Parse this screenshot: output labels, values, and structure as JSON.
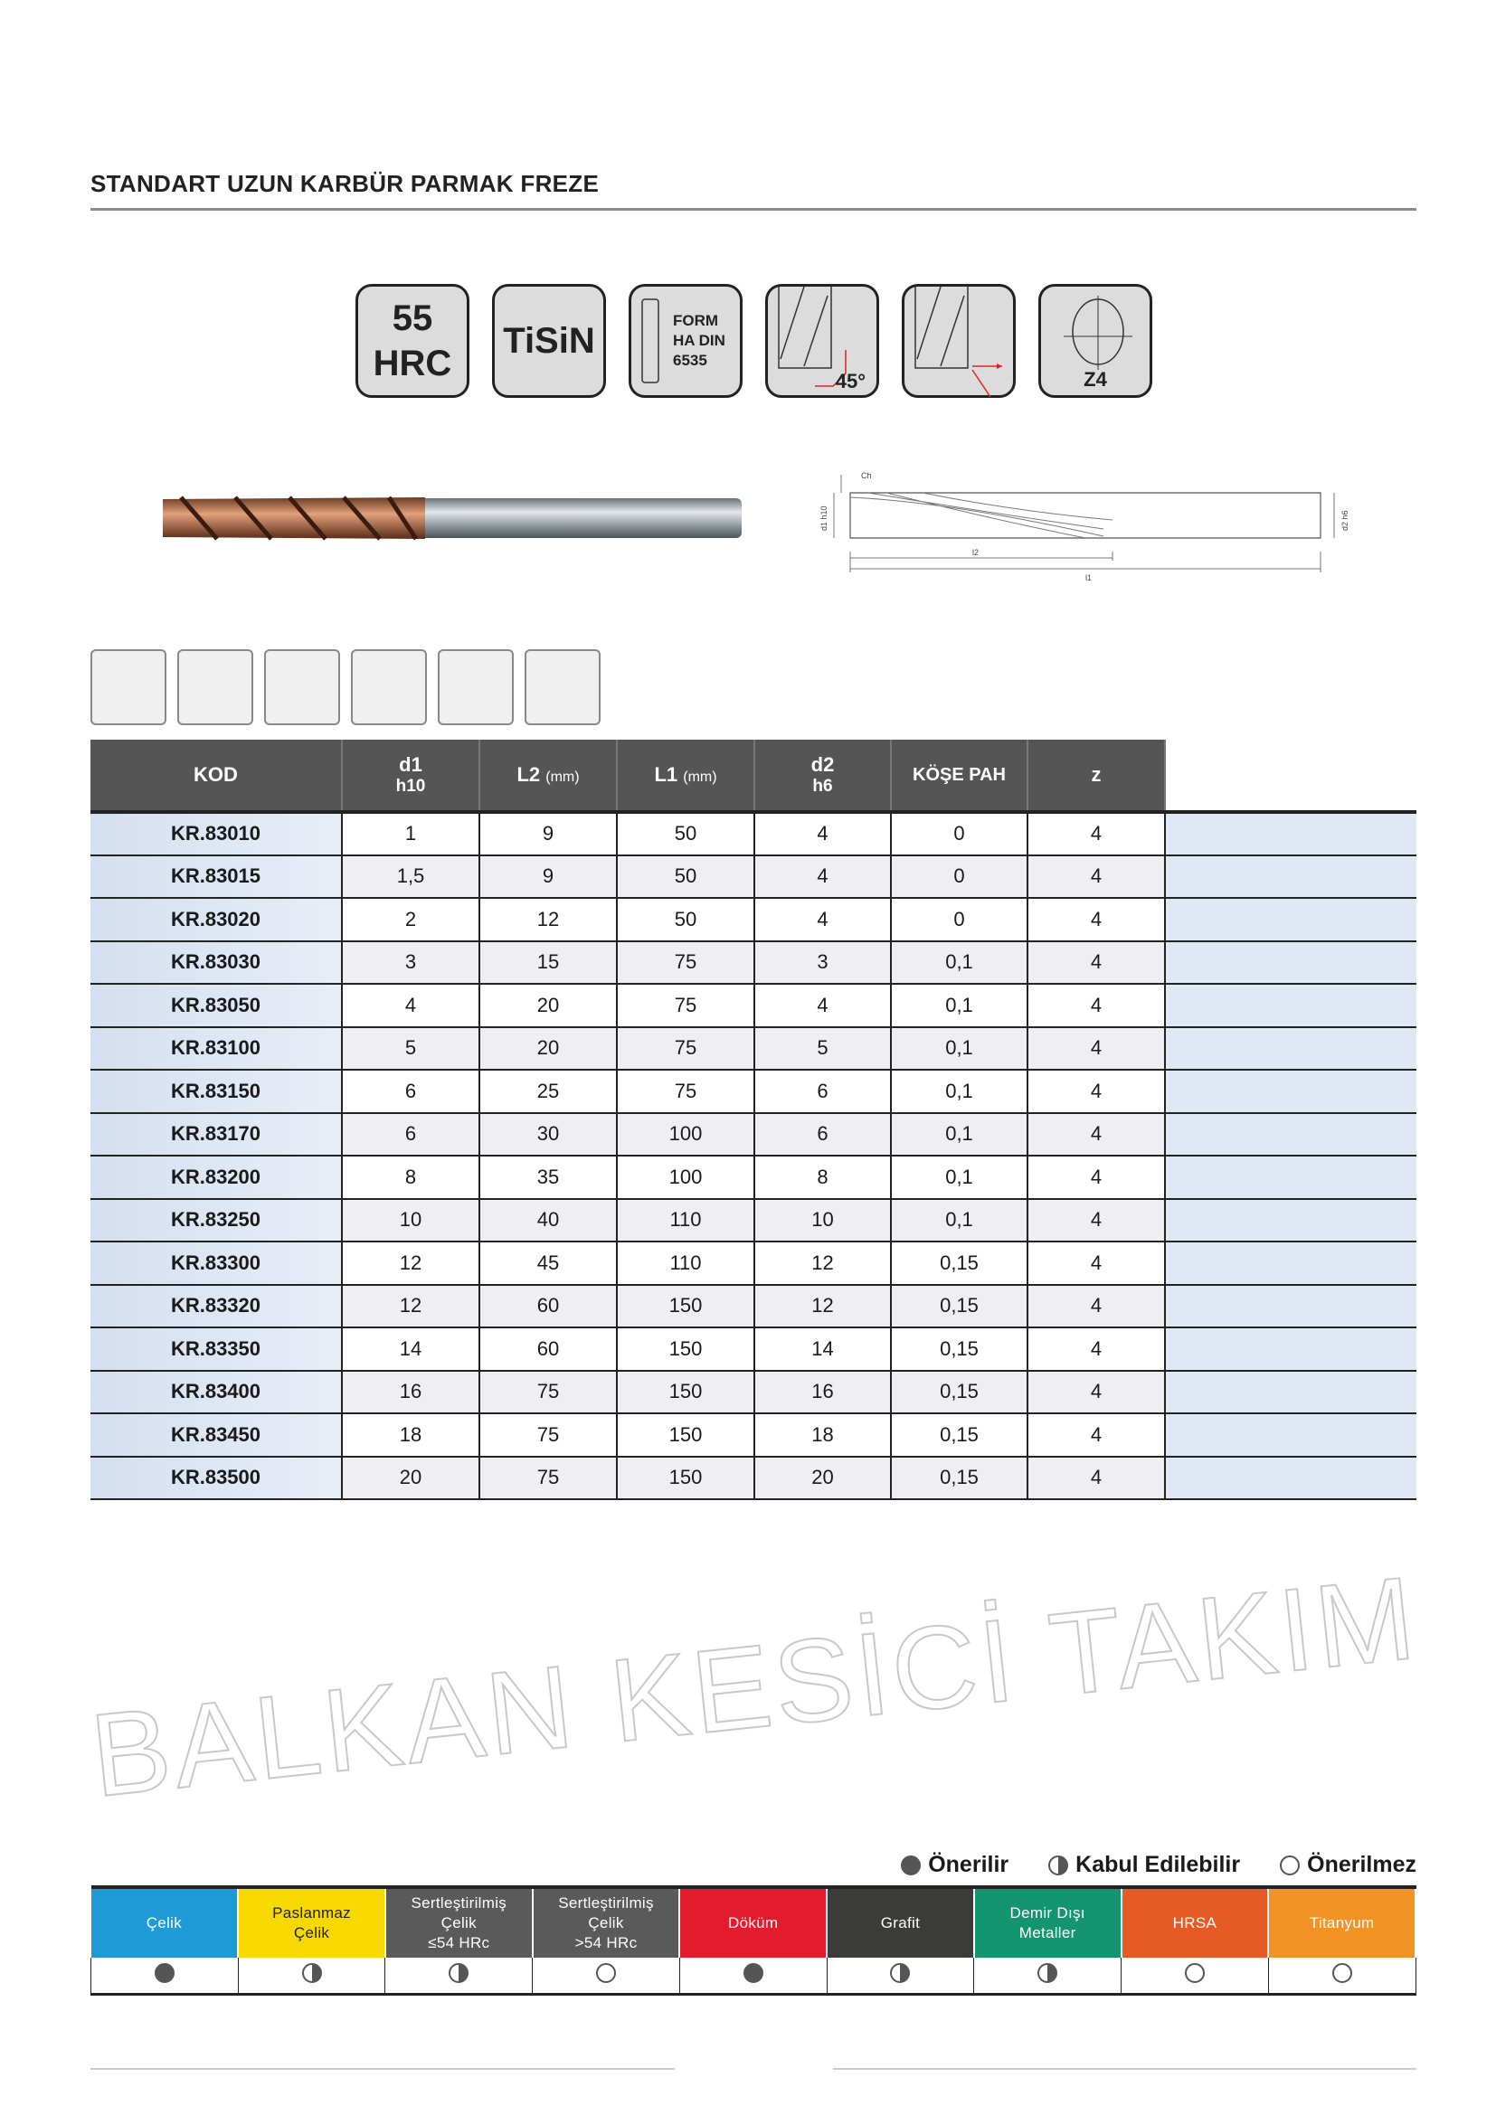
{
  "title": "STANDART UZUN KARBÜR PARMAK FREZE",
  "badges": {
    "hrc_value": "55",
    "hrc_unit": "HRC",
    "coating": "TiSiN",
    "form_l1": "FORM",
    "form_l2": "HA DIN",
    "form_l3": "6535",
    "angle": "45°",
    "flutes": "Z4"
  },
  "drawing_labels": {
    "ch": "Ch",
    "d1": "d1 h10",
    "d2": "d2 h6",
    "l2": "l2",
    "l1": "l1"
  },
  "table": {
    "headers": [
      {
        "main": "KOD",
        "sub": ""
      },
      {
        "main": "d1",
        "sub": "h10"
      },
      {
        "main": "L2",
        "unit": "(mm)"
      },
      {
        "main": "L1",
        "unit": "(mm)"
      },
      {
        "main": "d2",
        "sub": "h6"
      },
      {
        "main": "KÖŞE PAH",
        "sub": ""
      },
      {
        "main": "z",
        "sub": ""
      }
    ],
    "rows": [
      [
        "KR.83010",
        "1",
        "9",
        "50",
        "4",
        "0",
        "4"
      ],
      [
        "KR.83015",
        "1,5",
        "9",
        "50",
        "4",
        "0",
        "4"
      ],
      [
        "KR.83020",
        "2",
        "12",
        "50",
        "4",
        "0",
        "4"
      ],
      [
        "KR.83030",
        "3",
        "15",
        "75",
        "3",
        "0,1",
        "4"
      ],
      [
        "KR.83050",
        "4",
        "20",
        "75",
        "4",
        "0,1",
        "4"
      ],
      [
        "KR.83100",
        "5",
        "20",
        "75",
        "5",
        "0,1",
        "4"
      ],
      [
        "KR.83150",
        "6",
        "25",
        "75",
        "6",
        "0,1",
        "4"
      ],
      [
        "KR.83170",
        "6",
        "30",
        "100",
        "6",
        "0,1",
        "4"
      ],
      [
        "KR.83200",
        "8",
        "35",
        "100",
        "8",
        "0,1",
        "4"
      ],
      [
        "KR.83250",
        "10",
        "40",
        "110",
        "10",
        "0,1",
        "4"
      ],
      [
        "KR.83300",
        "12",
        "45",
        "110",
        "12",
        "0,15",
        "4"
      ],
      [
        "KR.83320",
        "12",
        "60",
        "150",
        "12",
        "0,15",
        "4"
      ],
      [
        "KR.83350",
        "14",
        "60",
        "150",
        "14",
        "0,15",
        "4"
      ],
      [
        "KR.83400",
        "16",
        "75",
        "150",
        "16",
        "0,15",
        "4"
      ],
      [
        "KR.83450",
        "18",
        "75",
        "150",
        "18",
        "0,15",
        "4"
      ],
      [
        "KR.83500",
        "20",
        "75",
        "150",
        "20",
        "0,15",
        "4"
      ]
    ]
  },
  "watermark": "BALKAN KESİCİ TAKIM",
  "legend": {
    "recommended": "Önerilir",
    "acceptable": "Kabul Edilebilir",
    "not_recommended": "Önerilmez"
  },
  "materials": [
    {
      "label": "Çelik",
      "color": "#1e9ad6",
      "text": "#fff",
      "rating": "full"
    },
    {
      "label": "Paslanmaz\nÇelik",
      "color": "#f7d900",
      "text": "#222",
      "rating": "half"
    },
    {
      "label": "Sertleştirilmiş\nÇelik\n≤54 HRc",
      "color": "#5a5a5a",
      "text": "#fff",
      "rating": "half"
    },
    {
      "label": "Sertleştirilmiş\nÇelik\n>54 HRc",
      "color": "#5a5a5a",
      "text": "#fff",
      "rating": "none"
    },
    {
      "label": "Döküm",
      "color": "#e31b2c",
      "text": "#fff",
      "rating": "full"
    },
    {
      "label": "Grafit",
      "color": "#3b3b39",
      "text": "#fff",
      "rating": "half"
    },
    {
      "label": "Demir Dışı\nMetaller",
      "color": "#13966f",
      "text": "#fff",
      "rating": "half"
    },
    {
      "label": "HRSA",
      "color": "#e55a25",
      "text": "#fff",
      "rating": "none"
    },
    {
      "label": "Titanyum",
      "color": "#f39325",
      "text": "#fff",
      "rating": "none"
    }
  ]
}
